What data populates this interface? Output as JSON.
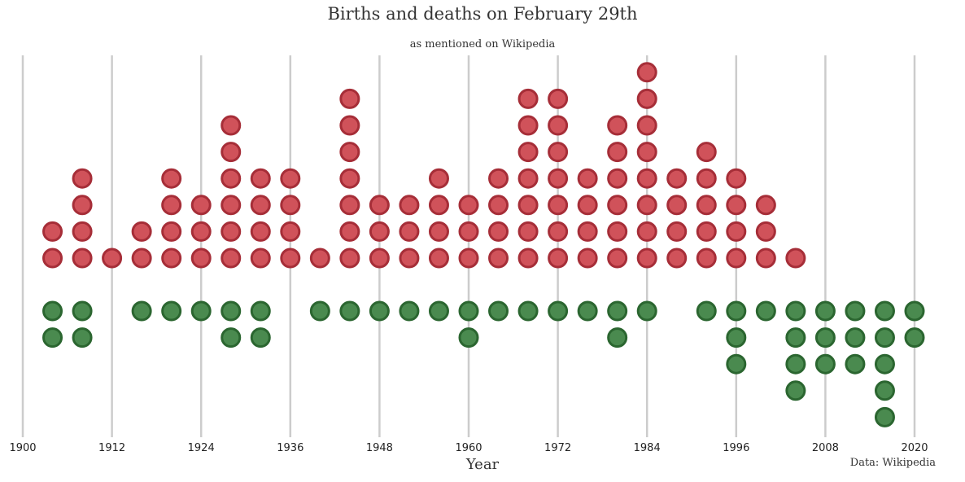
{
  "colors": {
    "births_fill": "#d0525a",
    "births_stroke": "#a62e38",
    "deaths_fill": "#4a8a4f",
    "deaths_stroke": "#2b6630",
    "gridline": "#cccccc"
  },
  "chart_data": {
    "type": "scatter",
    "title": "Births and deaths on February 29th",
    "subtitle": "as mentioned on Wikipedia",
    "xlabel": "Year",
    "ylabel": "",
    "source": "Data: Wikipedia",
    "xlim": [
      1900,
      2020
    ],
    "xticks": [
      1900,
      1912,
      1924,
      1936,
      1948,
      1960,
      1972,
      1984,
      1996,
      2008,
      2020
    ],
    "grid": "vertical at ticks",
    "categories": [
      1904,
      1908,
      1912,
      1916,
      1920,
      1924,
      1928,
      1932,
      1936,
      1940,
      1944,
      1948,
      1952,
      1956,
      1960,
      1964,
      1968,
      1972,
      1976,
      1980,
      1984,
      1988,
      1992,
      1996,
      2000,
      2004,
      2008,
      2012,
      2016,
      2020
    ],
    "series": [
      {
        "values": [
          2,
          4,
          1,
          2,
          4,
          3,
          6,
          4,
          4,
          1,
          7,
          3,
          3,
          4,
          3,
          4,
          7,
          7,
          4,
          6,
          8,
          4,
          5,
          4,
          3,
          1,
          0,
          0,
          0,
          0
        ]
      },
      {
        "values": [
          2,
          2,
          0,
          1,
          1,
          1,
          2,
          2,
          0,
          1,
          1,
          1,
          1,
          1,
          2,
          1,
          1,
          1,
          1,
          2,
          1,
          0,
          1,
          3,
          1,
          4,
          3,
          3,
          5,
          2
        ]
      }
    ]
  }
}
